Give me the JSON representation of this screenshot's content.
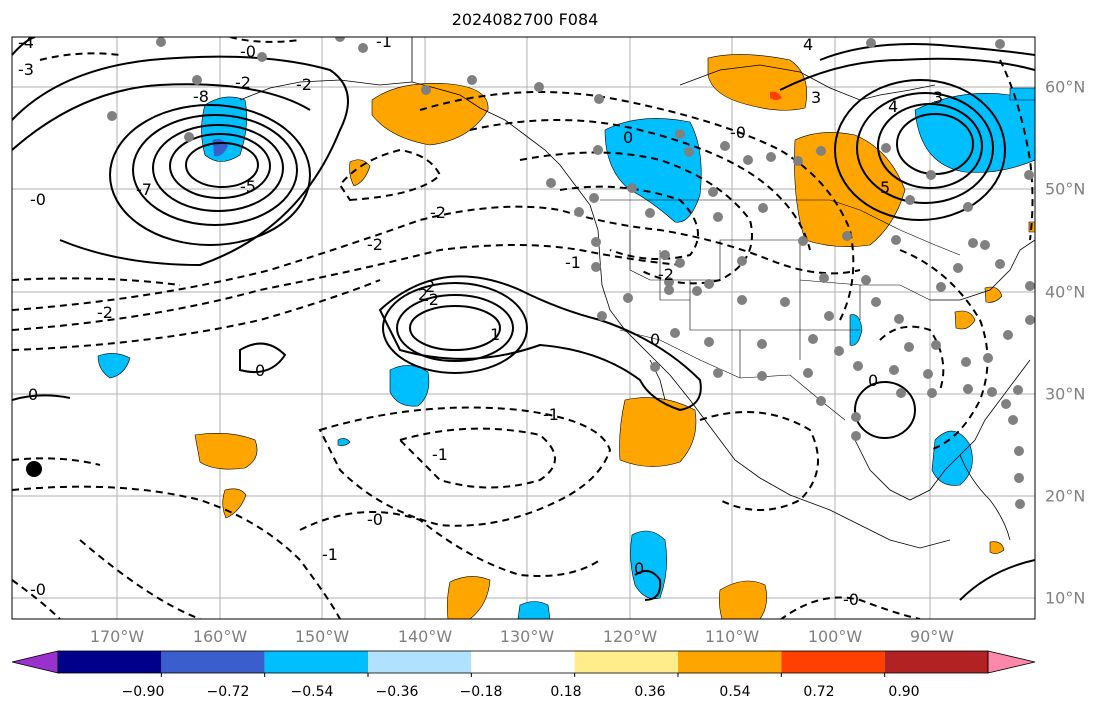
{
  "title": "2024082700 F084",
  "map": {
    "lon_labels": [
      "170°W",
      "160°W",
      "150°W",
      "140°W",
      "130°W",
      "120°W",
      "110°W",
      "100°W",
      "90°W"
    ],
    "lat_labels": [
      "60°N",
      "50°N",
      "40°N",
      "30°N",
      "20°N",
      "10°N"
    ]
  },
  "colorbar": {
    "colors": [
      "#9932cc",
      "#00008b",
      "#3a5fcd",
      "#00bfff",
      "#b0e2ff",
      "#ffffff",
      "#ffec8b",
      "#ffa500",
      "#ff4000",
      "#b22222",
      "#ff88aa"
    ],
    "tick_labels": [
      "−0.90",
      "−0.72",
      "−0.54",
      "−0.36",
      "−0.18",
      "0.18",
      "0.36",
      "0.54",
      "0.72",
      "0.90"
    ]
  },
  "contour_labels": [
    "-0",
    "-1",
    "-2",
    "-2",
    "-2",
    "-2",
    "-2",
    "-2",
    "-2",
    "-3",
    "-4",
    "-5",
    "-7",
    "-8",
    "-1",
    "-1",
    "-1",
    "0",
    "0",
    "0",
    "0",
    "-0",
    "-0",
    "-0",
    "-0",
    "0",
    "2",
    "2",
    "-1",
    "-0",
    "1",
    "3",
    "3",
    "4",
    "4",
    "5",
    "0"
  ]
}
